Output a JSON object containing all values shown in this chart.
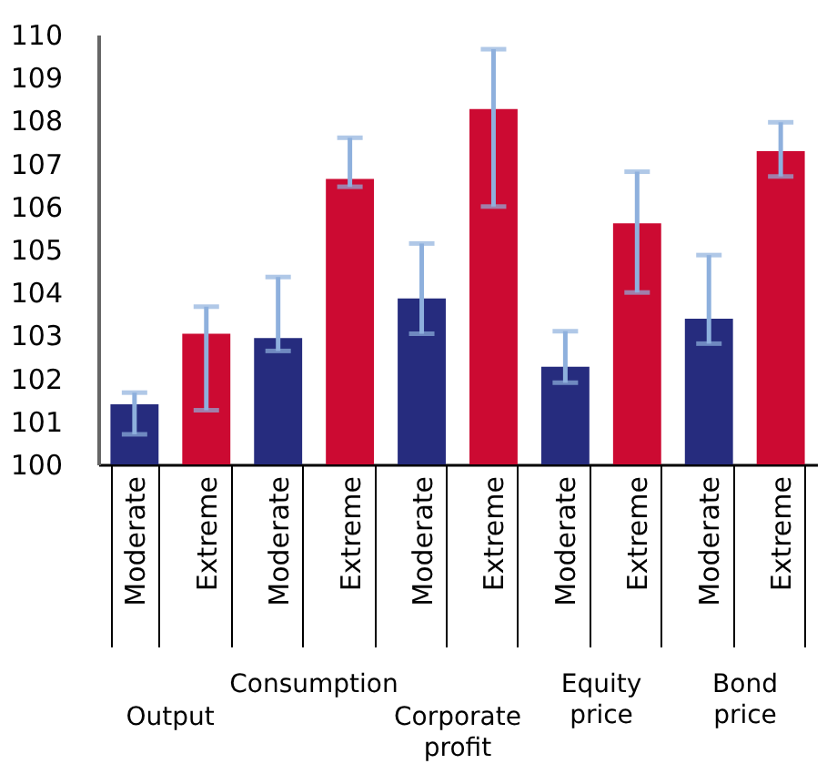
{
  "chart_data": {
    "type": "bar",
    "categories": [
      "Moderate",
      "Extreme",
      "Moderate",
      "Extreme",
      "Moderate",
      "Extreme",
      "Moderate",
      "Extreme",
      "Moderate",
      "Extreme"
    ],
    "values": [
      101.4,
      103.04,
      102.94,
      106.64,
      103.86,
      108.27,
      102.27,
      105.61,
      103.39,
      107.29
    ],
    "colors": [
      "#262c7e",
      "#cc0a32",
      "#262c7e",
      "#cc0a32",
      "#262c7e",
      "#cc0a32",
      "#262c7e",
      "#cc0a32",
      "#262c7e",
      "#cc0a32"
    ],
    "errors": [
      [
        100.7,
        101.67
      ],
      [
        101.26,
        103.67
      ],
      [
        102.64,
        104.36
      ],
      [
        106.46,
        107.6
      ],
      [
        103.04,
        105.14
      ],
      [
        106.0,
        109.66
      ],
      [
        101.9,
        103.1
      ],
      [
        104.0,
        106.81
      ],
      [
        102.81,
        104.87
      ],
      [
        106.7,
        107.96
      ]
    ],
    "annotations": [
      "Output",
      "Consumption",
      "Corporate profit",
      "Equity price",
      "Bond price"
    ],
    "ylim": [
      100,
      110
    ],
    "yticks": [
      100,
      101,
      102,
      103,
      104,
      105,
      106,
      107,
      108,
      109,
      110
    ],
    "grid": false
  }
}
